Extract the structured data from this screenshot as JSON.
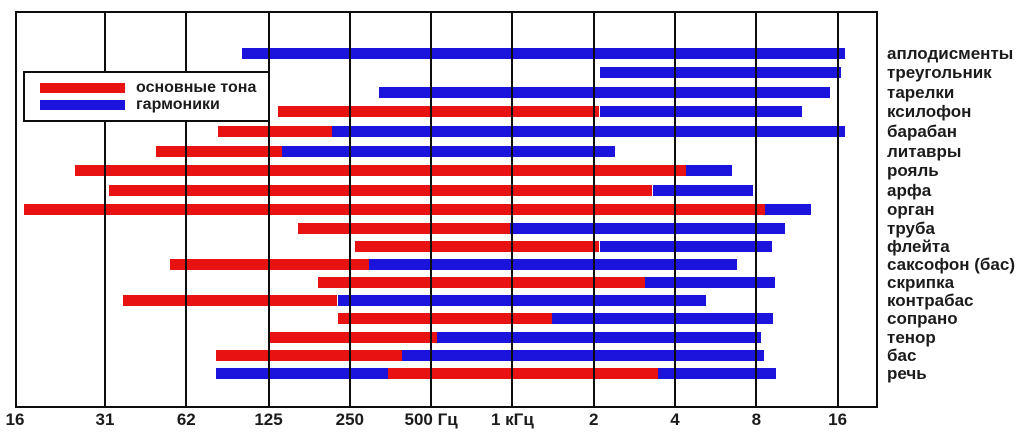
{
  "colors": {
    "fundamentals": "#e91212",
    "harmonics": "#1c13dd",
    "grid": "#0d0d0d",
    "text": "#1b1b1b"
  },
  "legend": {
    "items": [
      {
        "key": "fundamentals",
        "label": "основные тона"
      },
      {
        "key": "harmonics",
        "label": "гармоники"
      }
    ]
  },
  "chart_data": {
    "type": "bar",
    "orientation": "horizontal",
    "x_scale": "log2",
    "x_unit": "Hz",
    "xlim": [
      16,
      22000
    ],
    "grid": true,
    "legend_position": "top-left-inside",
    "axis_ticks": [
      {
        "label": "16",
        "hz": 16
      },
      {
        "label": "31",
        "hz": 31
      },
      {
        "label": "62",
        "hz": 62
      },
      {
        "label": "125",
        "hz": 125
      },
      {
        "label": "250",
        "hz": 250
      },
      {
        "label": "500 Гц",
        "hz": 500
      },
      {
        "label": "1 кГц",
        "hz": 1000
      },
      {
        "label": "2",
        "hz": 2000
      },
      {
        "label": "4",
        "hz": 4000
      },
      {
        "label": "8",
        "hz": 8000
      },
      {
        "label": "16",
        "hz": 16000
      }
    ],
    "rows": [
      {
        "label": "аплодисменты",
        "segments": [
          {
            "type": "harmonics",
            "from_hz": 100,
            "to_hz": 17000
          }
        ]
      },
      {
        "label": "треугольник",
        "segments": [
          {
            "type": "harmonics",
            "from_hz": 2100,
            "to_hz": 16500
          }
        ]
      },
      {
        "label": "тарелки",
        "segments": [
          {
            "type": "harmonics",
            "from_hz": 320,
            "to_hz": 15000
          }
        ]
      },
      {
        "label": "ксилофон",
        "segments": [
          {
            "type": "fundamentals",
            "from_hz": 135,
            "to_hz": 2100
          },
          {
            "type": "harmonics",
            "from_hz": 2100,
            "to_hz": 11800
          }
        ]
      },
      {
        "label": "барабан",
        "segments": [
          {
            "type": "fundamentals",
            "from_hz": 81,
            "to_hz": 215
          },
          {
            "type": "harmonics",
            "from_hz": 215,
            "to_hz": 17000
          }
        ]
      },
      {
        "label": "литавры",
        "segments": [
          {
            "type": "fundamentals",
            "from_hz": 48,
            "to_hz": 140
          },
          {
            "type": "harmonics",
            "from_hz": 140,
            "to_hz": 2400
          }
        ]
      },
      {
        "label": "рояль",
        "segments": [
          {
            "type": "fundamentals",
            "from_hz": 24,
            "to_hz": 4400
          },
          {
            "type": "harmonics",
            "from_hz": 4400,
            "to_hz": 6500
          }
        ]
      },
      {
        "label": "арфа",
        "segments": [
          {
            "type": "fundamentals",
            "from_hz": 32,
            "to_hz": 3300
          },
          {
            "type": "harmonics",
            "from_hz": 3300,
            "to_hz": 7800
          }
        ]
      },
      {
        "label": "орган",
        "segments": [
          {
            "type": "fundamentals",
            "from_hz": 15.5,
            "to_hz": 8600
          },
          {
            "type": "harmonics",
            "from_hz": 8600,
            "to_hz": 12800
          }
        ]
      },
      {
        "label": "труба",
        "segments": [
          {
            "type": "fundamentals",
            "from_hz": 160,
            "to_hz": 975
          },
          {
            "type": "harmonics",
            "from_hz": 975,
            "to_hz": 10200
          }
        ]
      },
      {
        "label": "флейта",
        "segments": [
          {
            "type": "fundamentals",
            "from_hz": 262,
            "to_hz": 2100
          },
          {
            "type": "harmonics",
            "from_hz": 2100,
            "to_hz": 9100
          }
        ]
      },
      {
        "label": "саксофон (бас)",
        "segments": [
          {
            "type": "fundamentals",
            "from_hz": 54,
            "to_hz": 295
          },
          {
            "type": "harmonics",
            "from_hz": 295,
            "to_hz": 6800
          }
        ]
      },
      {
        "label": "скрипка",
        "segments": [
          {
            "type": "fundamentals",
            "from_hz": 190,
            "to_hz": 3100
          },
          {
            "type": "harmonics",
            "from_hz": 3100,
            "to_hz": 9400
          }
        ]
      },
      {
        "label": "контрабас",
        "segments": [
          {
            "type": "fundamentals",
            "from_hz": 36,
            "to_hz": 225
          },
          {
            "type": "harmonics",
            "from_hz": 225,
            "to_hz": 5200
          }
        ]
      },
      {
        "label": "сопрано",
        "segments": [
          {
            "type": "fundamentals",
            "from_hz": 225,
            "to_hz": 1400
          },
          {
            "type": "harmonics",
            "from_hz": 1400,
            "to_hz": 9200
          }
        ]
      },
      {
        "label": "тенор",
        "segments": [
          {
            "type": "fundamentals",
            "from_hz": 125,
            "to_hz": 525
          },
          {
            "type": "harmonics",
            "from_hz": 525,
            "to_hz": 8300
          }
        ]
      },
      {
        "label": "бас",
        "segments": [
          {
            "type": "fundamentals",
            "from_hz": 80,
            "to_hz": 390
          },
          {
            "type": "harmonics",
            "from_hz": 390,
            "to_hz": 8500
          }
        ]
      },
      {
        "label": "речь",
        "segments": [
          {
            "type": "harmonics",
            "from_hz": 80,
            "to_hz": 345
          },
          {
            "type": "fundamentals",
            "from_hz": 345,
            "to_hz": 3450
          },
          {
            "type": "harmonics",
            "from_hz": 3450,
            "to_hz": 9500
          }
        ]
      }
    ]
  }
}
